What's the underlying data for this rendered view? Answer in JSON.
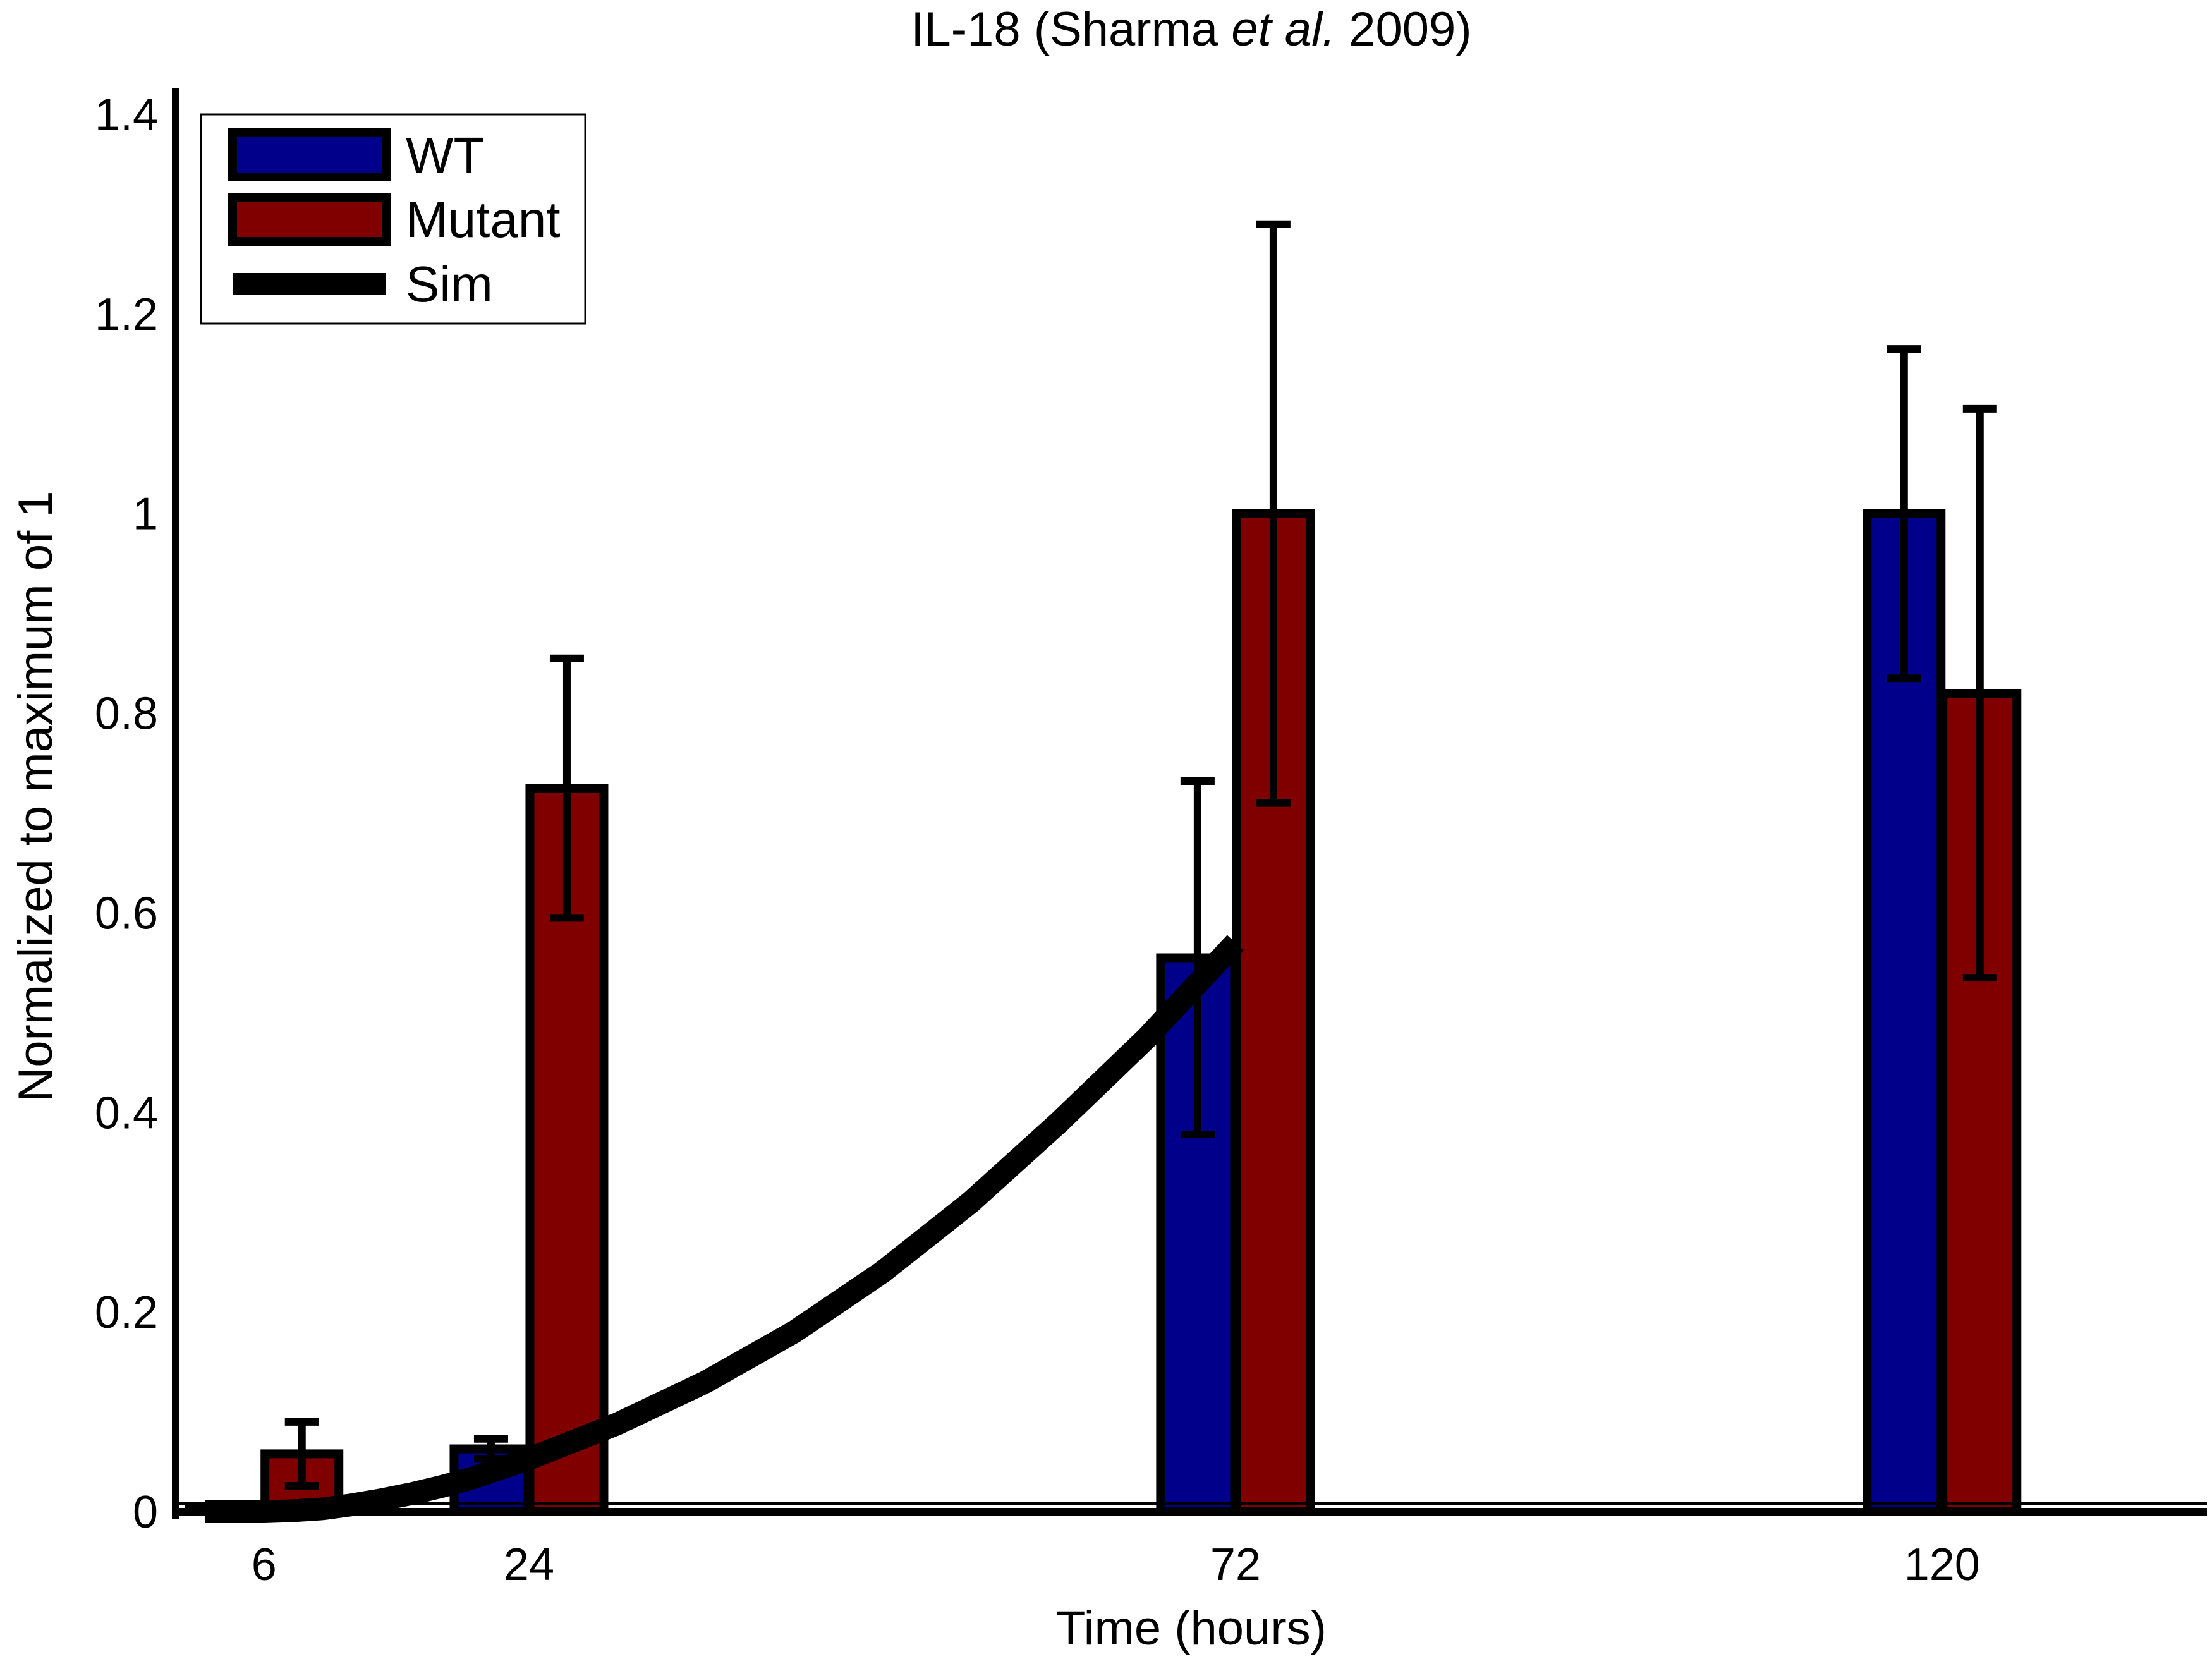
{
  "chart_data": {
    "type": "bar",
    "title_parts": {
      "prefix": "IL-18 (Sharma ",
      "italic": "et al.",
      "suffix": " 2009)"
    },
    "xlabel": "Time (hours)",
    "ylabel": "Normalized to maximum of 1",
    "categories": [
      6,
      24,
      72,
      120
    ],
    "category_labels": [
      "6",
      "24",
      "72",
      "120"
    ],
    "xlim": [
      0,
      138
    ],
    "ylim": [
      0,
      1.4
    ],
    "y_ticks": [
      0,
      0.2,
      0.4,
      0.6,
      0.8,
      1.0,
      1.2,
      1.4
    ],
    "y_tick_labels": [
      "0",
      "0.2",
      "0.4",
      "0.6",
      "0.8",
      "1",
      "1.2",
      "1.4"
    ],
    "grid": false,
    "legend_position": "top-left",
    "series": [
      {
        "name": "WT",
        "color": "#00008b",
        "values": [
          0.003,
          0.063,
          0.555,
          1.0
        ],
        "errors": [
          0.0,
          0.01,
          0.177,
          0.165
        ]
      },
      {
        "name": "Mutant",
        "color": "#800000",
        "values": [
          0.058,
          0.725,
          1.0,
          0.82
        ],
        "errors": [
          0.032,
          0.13,
          0.29,
          0.285
        ]
      }
    ],
    "line_series": {
      "name": "Sim",
      "color": "#000000",
      "x": [
        2,
        4,
        6,
        8,
        10,
        12,
        14,
        16,
        18,
        20,
        22,
        24,
        30,
        36,
        42,
        48,
        54,
        60,
        66,
        72
      ],
      "y": [
        0.0,
        0.0,
        0.0,
        0.001,
        0.003,
        0.007,
        0.012,
        0.018,
        0.025,
        0.033,
        0.043,
        0.053,
        0.088,
        0.13,
        0.18,
        0.24,
        0.31,
        0.39,
        0.475,
        0.57
      ]
    }
  }
}
